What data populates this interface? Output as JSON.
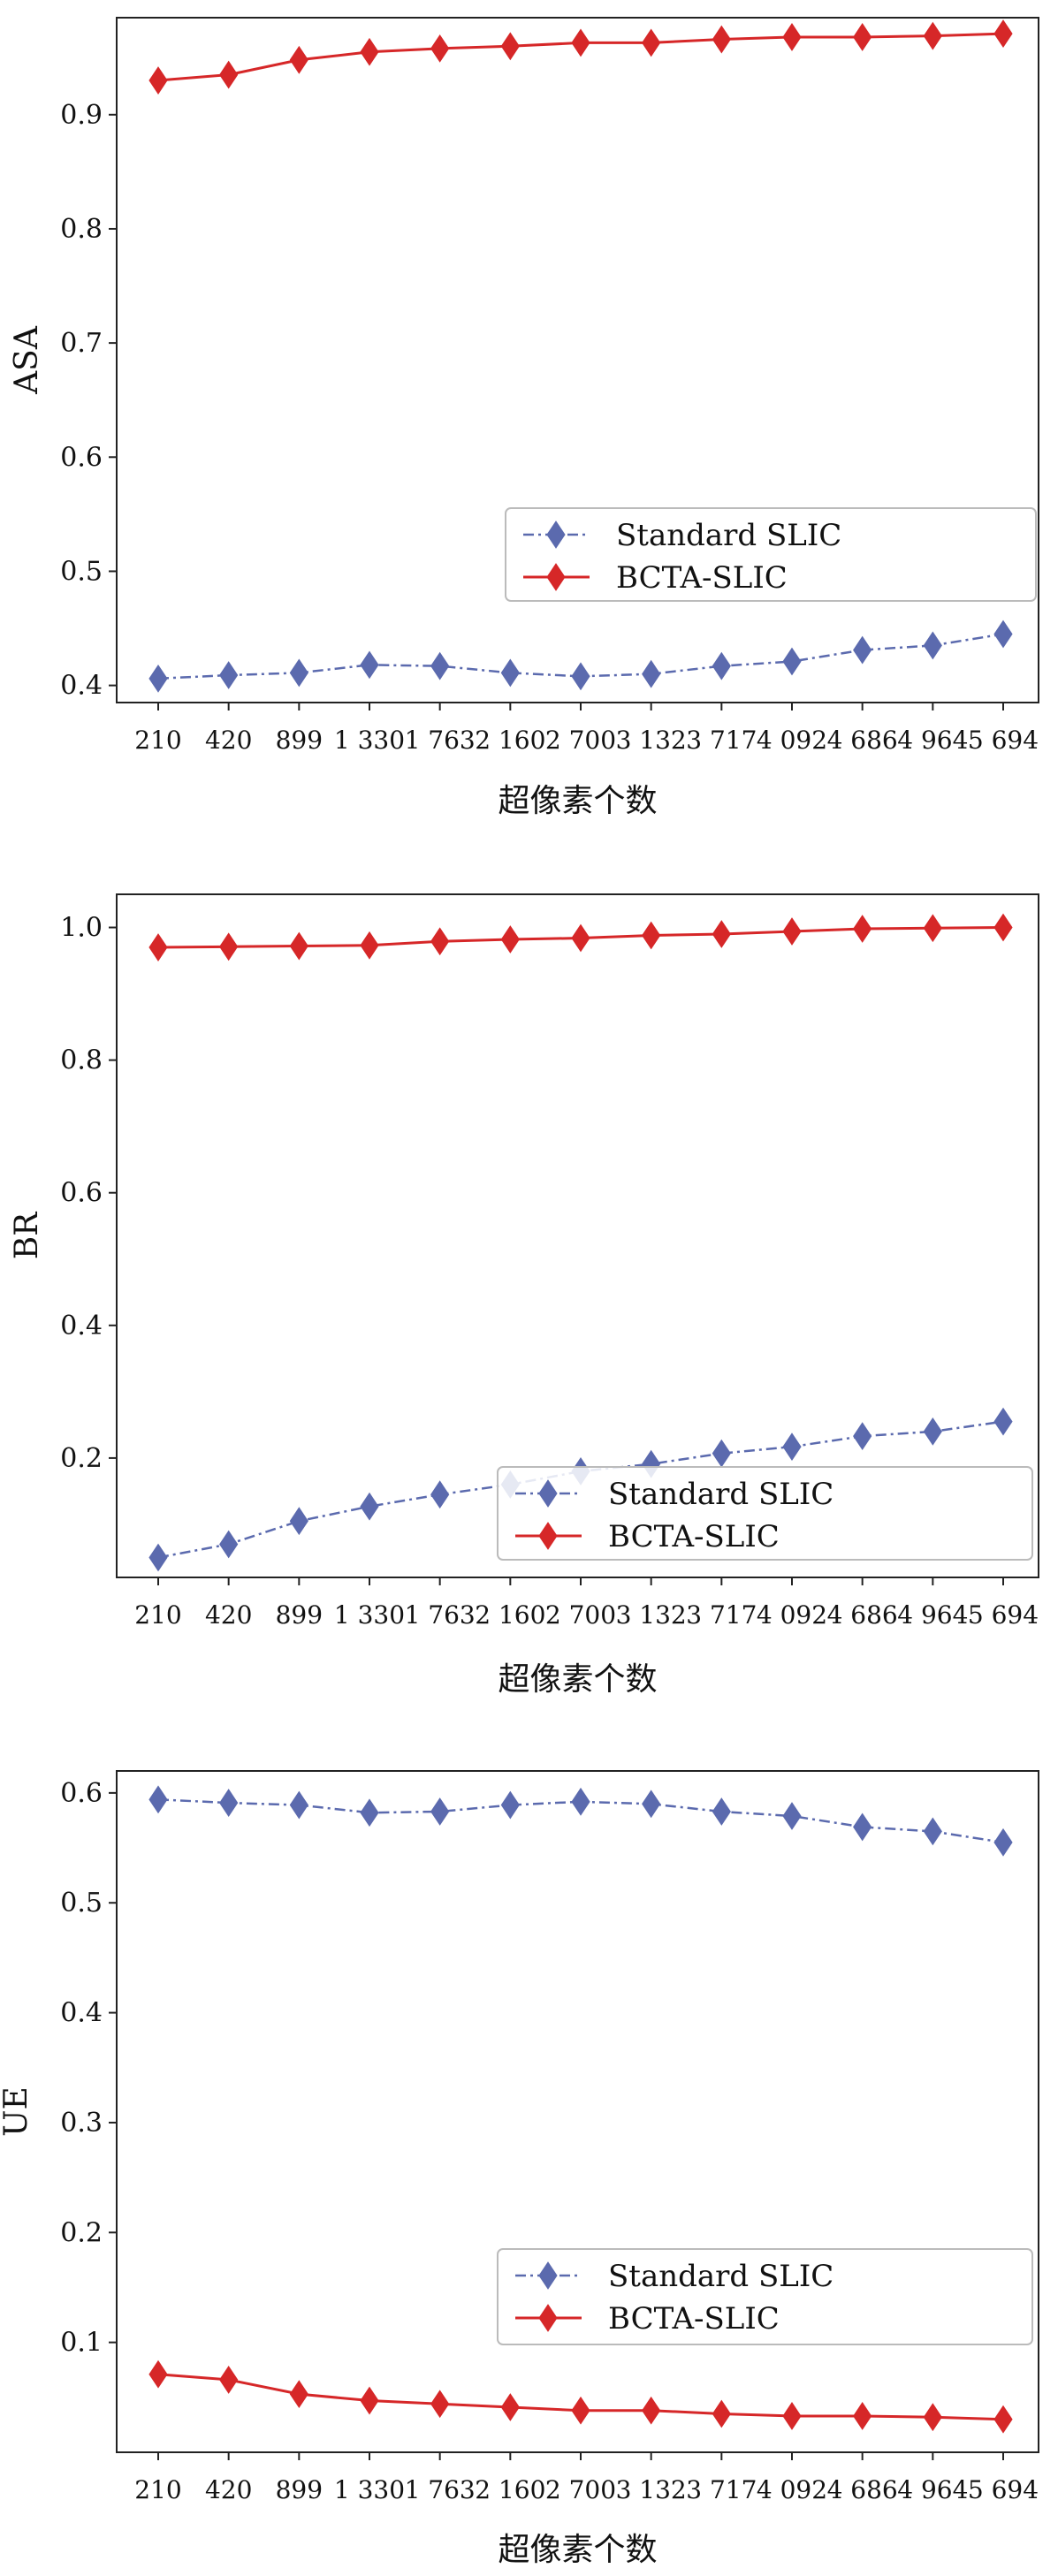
{
  "chart_data": [
    {
      "type": "line",
      "title": "",
      "xlabel": "超像素个数",
      "ylabel": "ASA",
      "categories": [
        "210",
        "420",
        "899",
        "1 330",
        "1 763",
        "2 160",
        "2 700",
        "3 132",
        "3 717",
        "4 092",
        "4 686",
        "4 964",
        "5 694"
      ],
      "ylim": [
        0.385,
        0.985
      ],
      "yticks": [
        "0.4",
        "0.5",
        "0.6",
        "0.7",
        "0.8",
        "0.9"
      ],
      "grid": false,
      "legend_position": "lower-right, above Standard SLIC line",
      "series": [
        {
          "name": "Standard SLIC",
          "color": "#5b6aae",
          "line_style": "dash-dot",
          "marker": "diamond",
          "values": [
            0.406,
            0.409,
            0.411,
            0.418,
            0.417,
            0.411,
            0.408,
            0.41,
            0.417,
            0.421,
            0.431,
            0.435,
            0.445
          ]
        },
        {
          "name": "BCTA-SLIC",
          "color": "#d62728",
          "line_style": "solid",
          "marker": "diamond",
          "values": [
            0.93,
            0.935,
            0.948,
            0.955,
            0.958,
            0.96,
            0.963,
            0.963,
            0.966,
            0.968,
            0.968,
            0.969,
            0.971
          ]
        }
      ]
    },
    {
      "type": "line",
      "title": "",
      "xlabel": "超像素个数",
      "ylabel": "BR",
      "categories": [
        "210",
        "420",
        "899",
        "1 330",
        "1 763",
        "2 160",
        "2 700",
        "3 132",
        "3 717",
        "4 092",
        "4 686",
        "4 964",
        "5 694"
      ],
      "ylim": [
        0.02,
        1.05
      ],
      "yticks": [
        "0.2",
        "0.4",
        "0.6",
        "0.8",
        "1.0"
      ],
      "grid": false,
      "legend_position": "lower-right",
      "series": [
        {
          "name": "Standard SLIC",
          "color": "#5b6aae",
          "line_style": "dash-dot",
          "marker": "diamond",
          "values": [
            0.05,
            0.07,
            0.105,
            0.127,
            0.145,
            0.16,
            0.18,
            0.191,
            0.207,
            0.217,
            0.233,
            0.24,
            0.255
          ]
        },
        {
          "name": "BCTA-SLIC",
          "color": "#d62728",
          "line_style": "solid",
          "marker": "diamond",
          "values": [
            0.97,
            0.971,
            0.972,
            0.973,
            0.979,
            0.982,
            0.984,
            0.988,
            0.99,
            0.994,
            0.998,
            0.999,
            1.0
          ]
        }
      ]
    },
    {
      "type": "line",
      "title": "",
      "xlabel": "超像素个数",
      "ylabel": "UE",
      "categories": [
        "210",
        "420",
        "899",
        "1 330",
        "1 763",
        "2 160",
        "2 700",
        "3 132",
        "3 717",
        "4 092",
        "4 686",
        "4 964",
        "5 694"
      ],
      "ylim": [
        0.0,
        0.62
      ],
      "yticks": [
        "0.1",
        "0.2",
        "0.3",
        "0.4",
        "0.5",
        "0.6"
      ],
      "grid": false,
      "legend_position": "lower-right",
      "series": [
        {
          "name": "Standard SLIC",
          "color": "#5b6aae",
          "line_style": "dash-dot",
          "marker": "diamond",
          "values": [
            0.594,
            0.591,
            0.589,
            0.582,
            0.583,
            0.589,
            0.592,
            0.59,
            0.583,
            0.579,
            0.569,
            0.565,
            0.555
          ]
        },
        {
          "name": "BCTA-SLIC",
          "color": "#d62728",
          "line_style": "solid",
          "marker": "diamond",
          "values": [
            0.071,
            0.066,
            0.053,
            0.047,
            0.044,
            0.041,
            0.038,
            0.038,
            0.035,
            0.033,
            0.033,
            0.032,
            0.03
          ]
        }
      ]
    }
  ]
}
